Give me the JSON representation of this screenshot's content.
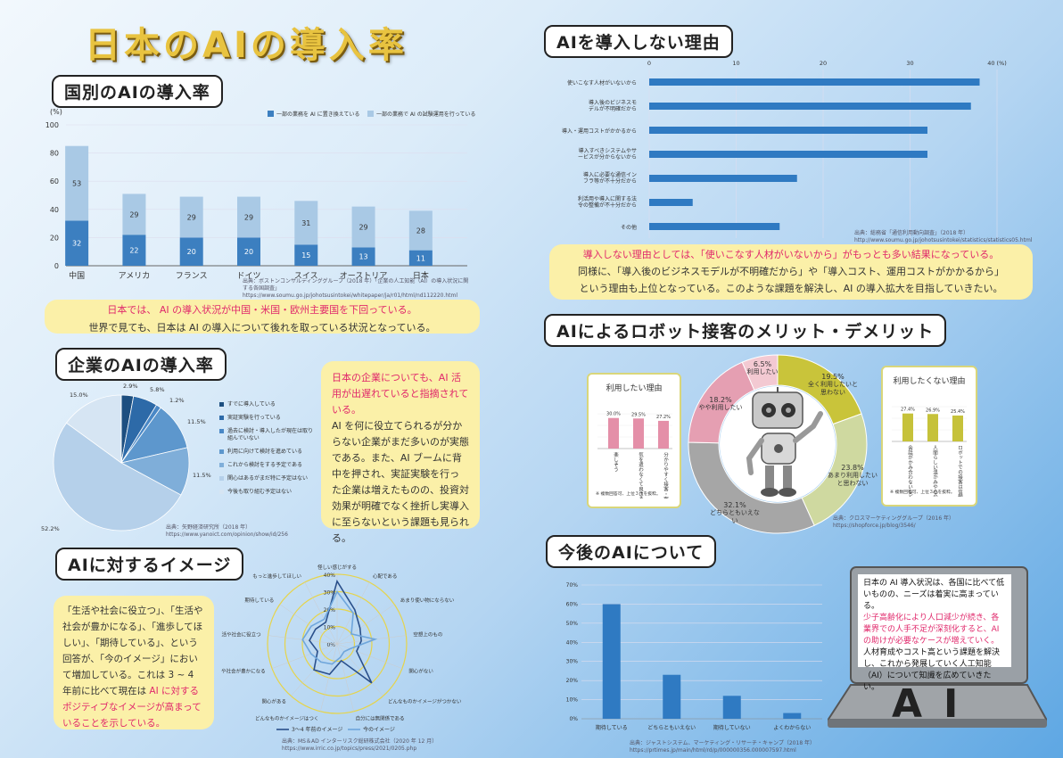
{
  "page_title": "日本のAIの導入率",
  "s1": {
    "header": "国別のAIの導入率",
    "unit": "(%)",
    "legend": [
      "一部の業務を AI に置き換えている",
      "一部の業務で AI の試験運用を行っている"
    ],
    "source": "出典：ボストンコンサルティンググループ（2018 年）「企業の人工知能（AI）の導入状況に関する各国調査」 https://www.soumu.go.jp/johotsusintokei/whitepaper/ja/r01/html/nd112220.html",
    "note_line1": "日本では、 AI の導入状況が中国・米国・欧州主要国を下回っている。",
    "note_line2": "世界で見ても、日本は AI の導入について後れを取っている状況となっている。"
  },
  "s2": {
    "header": "企業のAIの導入率",
    "legend": [
      "すでに導入している",
      "実証実験を行っている",
      "過去に検討・導入したが現在は取り組んでいない",
      "利用に向けて検討を進めている",
      "これから検討をする予定である",
      "関心はあるがまだ特に予定はない",
      "今後も取り組む予定はない"
    ],
    "pct_labels": [
      "2.9%",
      "5.8%",
      "1.2%",
      "11.5%",
      "11.5%",
      "52.2%",
      "15.0%"
    ],
    "source": "出典：矢野経済研究所（2018 年） https://www.yanoict.com/opinion/show/id/256",
    "note_red": "日本の企業についても、AI 活用が出遅れていると指摘されている。",
    "note_body": "AI を何に役立てられるが分からない企業がまだ多いのが実態である。また、AI ブームに背中を押され、実証実験を行った企業は増えたものの、投資対効果が明確でなく挫折し実導入に至らないという課題も見られる。"
  },
  "s3": {
    "header": "AIに対するイメージ",
    "note_black": "「生活や社会に役立つ」、「生活や社会が豊かになる」、「進歩してほしい」、「期待している」、という回答が、「今のイメージ」において増加している。これは 3 ~ 4 年前に比べて現在は ",
    "note_red": "AI に対するポジティブなイメージが高まっていることを示している。",
    "radar_axes": [
      "怪しい感じがする",
      "心配である",
      "あまり使い物にならない",
      "空想上のもの",
      "関心がない",
      "どんなものかイメージがつかない",
      "自分には無関係である",
      "どんなものかイメージはつく",
      "関心がある",
      "生活や社会が豊かになる",
      "生活や社会に役立つ",
      "期待している",
      "もっと進歩してほしい"
    ],
    "radar_ticks": [
      "0%",
      "10%",
      "20%",
      "30%",
      "40%"
    ],
    "legend": [
      "3～4 年前のイメージ",
      "今のイメージ"
    ],
    "source": "出典：MS＆AD インターリスク総研株式会社（2020 年 12 月） https://www.irric.co.jp/topics/press/2021/0205.php"
  },
  "s4": {
    "header": "AIを導入しない理由",
    "ticks": [
      "0",
      "10",
      "20",
      "30",
      "40 (%)"
    ],
    "source": "出典：総務省「通信利用動向調査」（2018 年） http://www.soumu.go.jp/johotsusintokei/statistics/statistics05.html",
    "note_red": "導入しない理由としては、「使いこなす人材がいないから」がもっとも多い結果になっている。",
    "note_line2": "同様に、「導入後のビジネスモデルが不明確だから」や「導入コスト、運用コストがかかるから」",
    "note_line3": "という理由も上位となっている。このような課題を解決し、AI の導入拡大を目指していきたい。"
  },
  "s5": {
    "header": "AIによるロボット接客のメリット・デメリット",
    "donut_labels": [
      "19.5%\n全く利用したいと思わない",
      "23.8%\nあまり利用したいと思わない",
      "32.1%\nどちらともいえない",
      "18.2%\nやや利用したい",
      "6.5%\n利用したい"
    ],
    "left_title": "利用したい理由",
    "left_vals_text": [
      "30.0%",
      "29.5%",
      "27.2%"
    ],
    "left_cats": [
      "楽しそう",
      "気を遣わなくて良さそう",
      "分かりやすく接客・案内してくれそう"
    ],
    "right_title": "利用したくない理由",
    "right_vals_text": [
      "27.4%",
      "26.9%",
      "25.4%"
    ],
    "right_cats": [
      "会話がかみ合わないなど人間の方が安心",
      "人間らしい温かみや心の通った接客ではない",
      "ロボットでの接客は信頼できない"
    ],
    "footnote": "※ 複数回答可、上位３位を抜粋。",
    "source": "出典：クロスマーケティンググループ（2016 年） https://shopforce.jp/blog/3546/"
  },
  "s6": {
    "header": "今後のAIについて",
    "note_black1": "日本の AI 導入状況は、各国に比べて低いものの、ニーズは着実に高まっている。",
    "note_red": "少子高齢化により人口減少が続き、各業界での人手不足が深刻化すると、AI の助けが必要なケースが増えていく。",
    "note_black2": "人材育成やコスト高という課題を解決し、これから発展していく人工知能（AI）について知識を広めていきたい。",
    "laptop_text": "AI",
    "source": "出典：ジャストシステム、マーケティング・リサーチ・キャンプ（2018 年） https://prtimes.jp/main/html/rd/p/000000356.000007597.html"
  },
  "chart_data": [
    {
      "type": "bar",
      "title": "",
      "categories": [
        "中国",
        "アメリカ",
        "フランス",
        "ドイツ",
        "スイス",
        "オーストリア",
        "日本"
      ],
      "series": [
        {
          "name": "一部の業務を AI に置き換えている",
          "values": [
            32,
            22,
            20,
            20,
            15,
            13,
            11
          ]
        },
        {
          "name": "一部の業務で AI の試験運用を行っている",
          "values": [
            53,
            29,
            29,
            29,
            31,
            29,
            28
          ]
        }
      ],
      "ylim": [
        0,
        100
      ],
      "yticks": [
        0,
        20,
        40,
        60,
        80,
        100
      ],
      "ylabel": "(%)",
      "stacked": true,
      "colors": [
        "#3c7fc0",
        "#a9c9e5"
      ]
    },
    {
      "type": "pie",
      "categories": [
        "すでに導入している",
        "実証実験を行っている",
        "過去に検討・導入したが現在は取り組んでいない",
        "利用に向けて検討を進めている",
        "これから検討をする予定である",
        "関心はあるがまだ特に予定はない",
        "今後も取り組む予定はない"
      ],
      "values": [
        2.9,
        5.8,
        1.2,
        11.5,
        11.5,
        52.2,
        15.0
      ],
      "colors": [
        "#1d4f80",
        "#2d6aa8",
        "#4a88c6",
        "#5d97cd",
        "#7faed9",
        "#b5d0ea",
        "#d6e5f3"
      ]
    },
    {
      "type": "radar",
      "categories": [
        "怪しい感じがする",
        "心配である",
        "あまり使い物にならない",
        "空想上のもの",
        "関心がない",
        "どんなものかイメージがつかない",
        "自分には無関係である",
        "どんなものかイメージはつく",
        "関心がある",
        "生活や社会が豊かになる",
        "生活や社会に役立つ",
        "期待している",
        "もっと進歩してほしい"
      ],
      "series": [
        {
          "name": "3～4 年前のイメージ",
          "values": [
            36,
            22,
            16,
            14,
            12,
            30,
            10,
            18,
            20,
            12,
            16,
            15,
            14
          ]
        },
        {
          "name": "今のイメージ",
          "values": [
            30,
            20,
            10,
            22,
            8,
            6,
            8,
            12,
            14,
            16,
            20,
            18,
            16
          ]
        }
      ],
      "rlim": [
        0,
        40
      ],
      "colors": [
        "#2a4f8a",
        "#6fa6db"
      ]
    },
    {
      "type": "bar",
      "orientation": "horizontal",
      "categories": [
        "使いこなす人材がいないから",
        "導入後のビジネスモデルが不明確だから",
        "導入・運用コストがかかるから",
        "導入すべきシステムやサービスが分からないから",
        "導入に必要な通信インフラ等が不十分だから",
        "利活用や導入に関する法令の整備が不十分だから",
        "その他"
      ],
      "values": [
        38,
        37,
        32,
        32,
        17,
        5,
        15
      ],
      "xlim": [
        0,
        40
      ],
      "xticks": [
        0,
        10,
        20,
        30,
        40
      ],
      "color": "#2f7ac2"
    },
    {
      "type": "pie",
      "donut": true,
      "categories": [
        "全く利用したいと思わない",
        "あまり利用したいと思わない",
        "どちらともいえない",
        "やや利用したい",
        "利用したい"
      ],
      "values": [
        19.5,
        23.8,
        32.1,
        18.2,
        6.5
      ],
      "colors": [
        "#c9c43a",
        "#cfd9a0",
        "#a6a6a6",
        "#e59fb2",
        "#f3c9d2"
      ]
    },
    {
      "type": "bar",
      "title": "利用したい理由",
      "categories": [
        "楽しそう",
        "気を遣わなくて良さそう",
        "分かりやすく接客・案内してくれそう"
      ],
      "values": [
        30.0,
        29.5,
        27.2
      ],
      "ylim": [
        0,
        35
      ],
      "color": "#e48fa8"
    },
    {
      "type": "bar",
      "title": "利用したくない理由",
      "categories": [
        "会話がかみ合わないなど人間の方が安心",
        "人間らしい温かみや心の通った接客ではない",
        "ロボットでの接客は信頼できない"
      ],
      "values": [
        27.4,
        26.9,
        25.4
      ],
      "ylim": [
        0,
        35
      ],
      "color": "#c6c23a"
    },
    {
      "type": "bar",
      "categories": [
        "期待している",
        "どちらともいえない",
        "期待していない",
        "よくわからない"
      ],
      "values": [
        60,
        23,
        12,
        3
      ],
      "ylim": [
        0,
        70
      ],
      "yticks": [
        0,
        10,
        20,
        30,
        40,
        50,
        60,
        70
      ],
      "tick_labels": [
        "0%",
        "10%",
        "20%",
        "30%",
        "40%",
        "50%",
        "60%",
        "70%"
      ],
      "color": "#2f7ac2"
    }
  ]
}
